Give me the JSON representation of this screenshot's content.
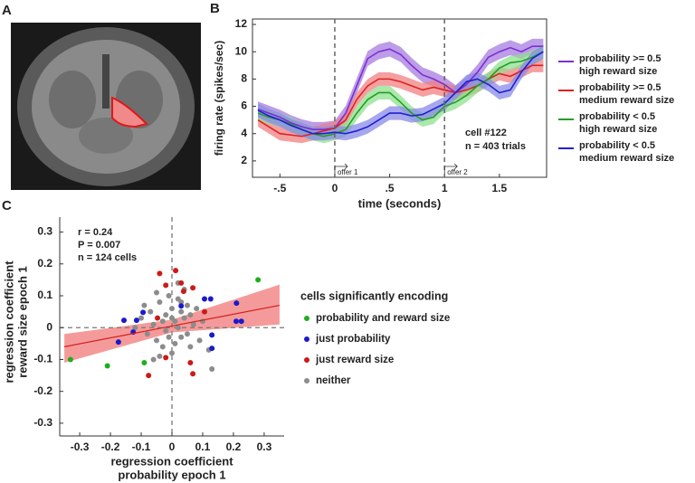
{
  "panel_labels": [
    "A",
    "B",
    "C"
  ],
  "chart_data": [
    {
      "type": "line",
      "xlabel": "time (seconds)",
      "ylabel": "firing rate (spikes/sec)",
      "xlim": [
        -0.75,
        1.93
      ],
      "ylim": [
        0.8,
        12.4
      ],
      "xticks": [
        {
          "value": -0.5,
          "label": "-.5"
        },
        0,
        {
          "value": 0.5,
          "label": ".5"
        },
        1,
        1.5
      ],
      "yticks": [
        2,
        4,
        6,
        8,
        10,
        12
      ],
      "x": [
        -0.7,
        -0.6,
        -0.5,
        -0.4,
        -0.3,
        -0.2,
        -0.1,
        0,
        0.1,
        0.2,
        0.3,
        0.4,
        0.5,
        0.6,
        0.7,
        0.8,
        0.9,
        1.0,
        1.1,
        1.2,
        1.3,
        1.4,
        1.5,
        1.6,
        1.7,
        1.8,
        1.9
      ],
      "series": [
        {
          "name": "probability >= 0.5\nhigh reward size",
          "color": "#7b2fd0",
          "band_color": "#a77be0",
          "error": 0.55,
          "values": [
            5.8,
            5.5,
            5.2,
            4.8,
            4.5,
            4.3,
            4.3,
            4.4,
            5.5,
            7.5,
            9.5,
            10.0,
            10.2,
            9.8,
            9.0,
            8.3,
            8.0,
            7.6,
            7.0,
            7.6,
            8.5,
            9.6,
            10.0,
            10.3,
            10.0,
            10.4,
            10.4
          ]
        },
        {
          "name": "probability >= 0.5\nmedium reward size",
          "color": "#e02020",
          "band_color": "#f08080",
          "error": 0.5,
          "values": [
            5.0,
            4.5,
            4.0,
            3.9,
            3.8,
            4.0,
            4.2,
            4.4,
            5.0,
            6.5,
            7.5,
            8.0,
            8.0,
            7.8,
            7.5,
            7.2,
            7.4,
            7.2,
            7.0,
            7.2,
            7.5,
            8.0,
            8.4,
            8.2,
            8.6,
            9.0,
            9.0
          ]
        },
        {
          "name": "probability < 0.5\nhigh reward size",
          "color": "#22a022",
          "band_color": "#8fe08f",
          "error": 0.5,
          "values": [
            5.5,
            5.2,
            5.0,
            4.7,
            4.3,
            4.0,
            3.8,
            4.0,
            4.3,
            5.5,
            6.5,
            7.0,
            7.0,
            6.3,
            5.5,
            5.0,
            5.2,
            6.0,
            6.3,
            6.8,
            7.5,
            8.0,
            8.8,
            9.2,
            9.3,
            9.6,
            10.0
          ]
        },
        {
          "name": "probability < 0.5\nmedium reward size",
          "color": "#2020d0",
          "band_color": "#8a8ae8",
          "error": 0.5,
          "values": [
            5.7,
            5.3,
            5.0,
            4.6,
            4.3,
            4.0,
            4.0,
            4.1,
            4.0,
            4.2,
            4.5,
            5.0,
            5.5,
            5.5,
            5.3,
            5.4,
            5.8,
            6.2,
            7.0,
            7.8,
            8.0,
            7.6,
            7.0,
            7.2,
            8.5,
            9.5,
            10.0
          ]
        }
      ],
      "events": [
        {
          "x": 0,
          "label": "offer 1"
        },
        {
          "x": 1,
          "label": "offer 2"
        }
      ],
      "annotations": [
        "cell #122",
        "n = 403 trials"
      ]
    },
    {
      "type": "scatter",
      "xlabel": [
        "regression coefficient",
        "probability epoch 1"
      ],
      "ylabel": [
        "regression coefficient",
        "reward size epoch 1"
      ],
      "xlim": [
        -0.365,
        0.365
      ],
      "ylim": [
        -0.34,
        0.347
      ],
      "xticks": [
        -0.3,
        -0.2,
        -0.1,
        0,
        0.1,
        0.2,
        0.3
      ],
      "yticks": [
        0.3,
        0.2,
        0.1,
        0,
        -0.1,
        -0.2,
        -0.3
      ],
      "annotations": [
        "r = 0.24",
        "P = 0.007",
        "n = 124 cells"
      ],
      "legend_title": "cells significantly encoding",
      "fit": {
        "color": "#d02020",
        "band_color": "#f59a9a",
        "x": [
          -0.35,
          0,
          0.35
        ],
        "y": [
          -0.06,
          0.005,
          0.07
        ],
        "upper": [
          -0.02,
          0.025,
          0.135
        ],
        "lower": [
          -0.11,
          -0.015,
          0.01
        ]
      },
      "series": [
        {
          "name": "probability and reward size",
          "color": "#1fae1f",
          "x": [
            -0.33,
            -0.21,
            -0.09,
            0.28
          ],
          "values": [
            -0.1,
            -0.12,
            -0.11,
            0.15
          ]
        },
        {
          "name": "just probability",
          "color": "#1a1acc",
          "x": [
            -0.156,
            -0.115,
            -0.126,
            -0.174,
            -0.094,
            0.03,
            0.106,
            0.126,
            0.21,
            0.209,
            0.226,
            0.13,
            0.13
          ],
          "values": [
            0.023,
            0.023,
            -0.014,
            -0.045,
            0.048,
            0.068,
            0.09,
            0.09,
            0.077,
            0.02,
            0.02,
            -0.023,
            -0.065
          ]
        },
        {
          "name": "just reward size",
          "color": "#cc1a1a",
          "x": [
            -0.04,
            0.012,
            -0.02,
            0.038,
            0.068,
            0.03,
            -0.047,
            -0.02,
            -0.076,
            0.06,
            0.068,
            0.106
          ],
          "values": [
            0.17,
            0.179,
            0.133,
            0.114,
            0.125,
            0.14,
            0.03,
            -0.094,
            -0.15,
            -0.11,
            -0.145,
            0.05
          ]
        },
        {
          "name": "neither",
          "color": "#8c8c8c",
          "x": [
            -0.12,
            -0.1,
            -0.08,
            -0.07,
            -0.06,
            -0.05,
            -0.04,
            -0.03,
            -0.03,
            -0.02,
            -0.02,
            -0.01,
            -0.01,
            0,
            0,
            0.01,
            0.01,
            0.02,
            0.02,
            0.03,
            0.03,
            0.04,
            0.04,
            0.05,
            0.05,
            0.06,
            0.07,
            0.08,
            0.09,
            0.1,
            0.12,
            0.13,
            -0.05,
            -0.04,
            0.02,
            0.06,
            -0.09,
            0.0,
            0.03,
            -0.06
          ],
          "values": [
            0.0,
            0.03,
            -0.02,
            0.05,
            0.01,
            -0.04,
            0.08,
            0.02,
            -0.06,
            0.04,
            -0.01,
            0.1,
            -0.03,
            0.06,
            -0.08,
            0.02,
            -0.05,
            0.09,
            0.0,
            0.05,
            -0.03,
            0.12,
            0.03,
            0.07,
            -0.02,
            0.04,
            0.01,
            0.06,
            -0.04,
            0.02,
            -0.07,
            -0.13,
            0.11,
            -0.09,
            0.14,
            -0.06,
            0.07,
            0.03,
            0.08,
            -0.1
          ]
        }
      ]
    }
  ]
}
